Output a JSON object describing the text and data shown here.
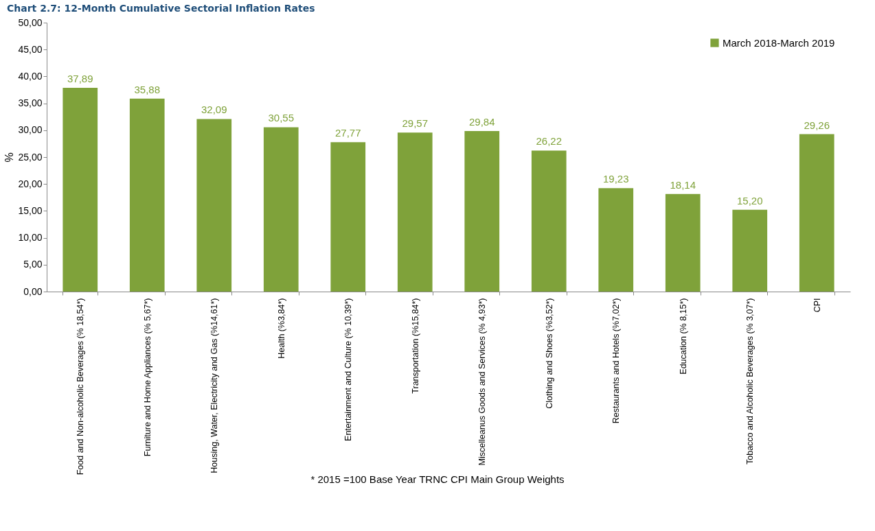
{
  "chart_data": {
    "type": "bar",
    "title": "Chart 2.7: 12-Month Cumulative Sectorial Inflation Rates",
    "ylabel": "%",
    "categories": [
      "Food and Non-alcoholic Beverages (% 18,54*)",
      "Furniture and Home Appliances (% 5,67*)",
      "Housing, Water, Electricity and Gas (%14,61*)",
      "Health (%3,84*)",
      "Entertainment and Culture (% 10,39*)",
      "Transportation (%15,84*)",
      "Miscelleanus Goods and Services (% 4,93*)",
      "Clothing and Shoes (%3,52*)",
      "Restaurants and Hotels (%7,02*)",
      "Education (% 8,15*)",
      "Tobacco and Alcoholic Beverages (% 3,07*)",
      "CPI"
    ],
    "series": [
      {
        "name": "March 2018-March 2019",
        "color": "#7fa23a",
        "values": [
          37.89,
          35.88,
          32.09,
          30.55,
          27.77,
          29.57,
          29.84,
          26.22,
          19.23,
          18.14,
          15.2,
          29.26
        ],
        "value_labels": [
          "37,89",
          "35,88",
          "32,09",
          "30,55",
          "27,77",
          "29,57",
          "29,84",
          "26,22",
          "19,23",
          "18,14",
          "15,20",
          "29,26"
        ]
      }
    ],
    "ylim": [
      0,
      50
    ],
    "yticks": [
      {
        "value": 0,
        "label": "0,00"
      },
      {
        "value": 5,
        "label": "5,00"
      },
      {
        "value": 10,
        "label": "10,00"
      },
      {
        "value": 15,
        "label": "15,00"
      },
      {
        "value": 20,
        "label": "20,00"
      },
      {
        "value": 25,
        "label": "25,00"
      },
      {
        "value": 30,
        "label": "30,00"
      },
      {
        "value": 35,
        "label": "35,00"
      },
      {
        "value": 40,
        "label": "40,00"
      },
      {
        "value": 45,
        "label": "45,00"
      },
      {
        "value": 50,
        "label": "50,00"
      }
    ],
    "grid": false,
    "legend": "top right",
    "annotations": [
      "*  2015 =100 Base Year TRNC CPI Main Group Weights"
    ]
  }
}
